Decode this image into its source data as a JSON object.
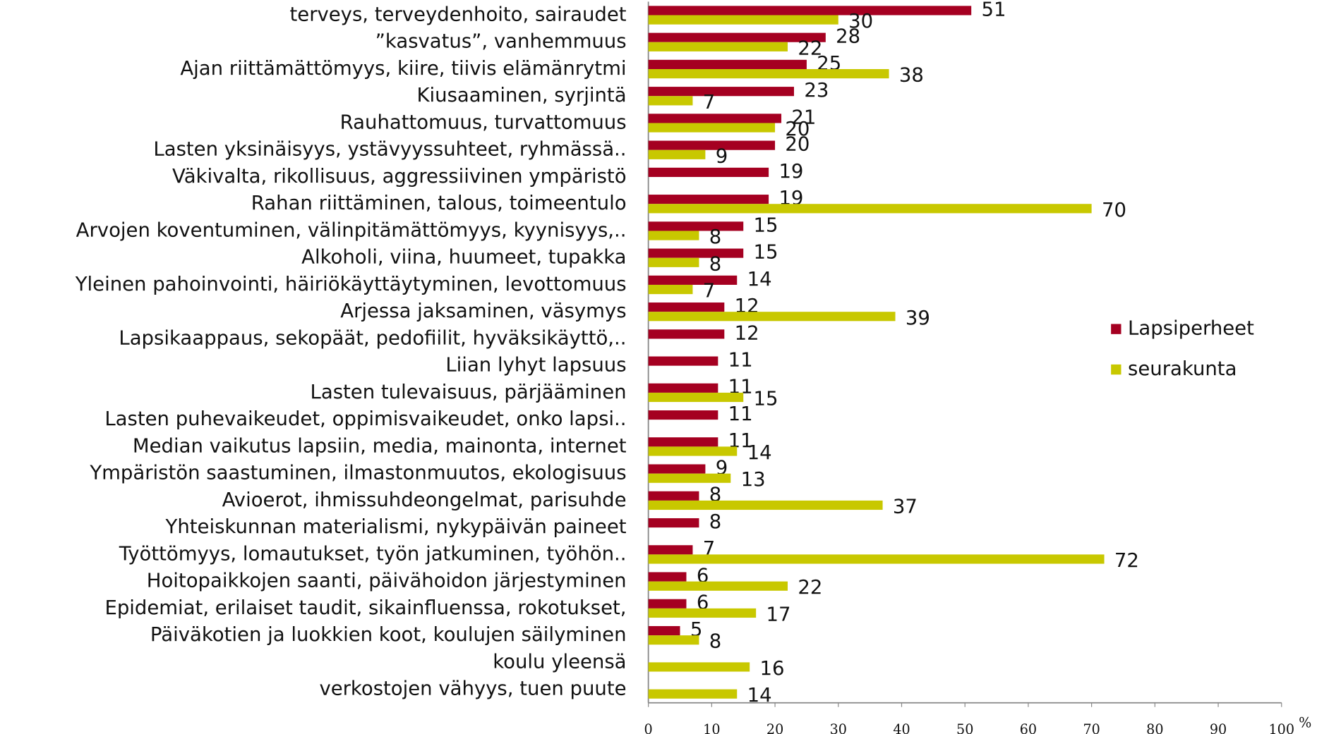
{
  "chart_data": {
    "type": "barh",
    "categories": [
      "terveys, terveydenhoito, sairaudet",
      "”kasvatus”, vanhemmuus",
      "Ajan riittämättömyys, kiire, tiivis elämänrytmi",
      "Kiusaaminen, syrjintä",
      "Rauhattomuus, turvattomuus",
      "Lasten yksinäisyys, ystävyyssuhteet, ryhmässä..",
      "Väkivalta, rikollisuus, aggressiivinen ympäristö",
      "Rahan riittäminen, talous, toimeentulo",
      "Arvojen koventuminen,  välinpitämättömyys, kyynisyys,..",
      "Alkoholi, viina, huumeet, tupakka",
      "Yleinen pahoinvointi, häiriökäyttäytyminen, levottomuus",
      "Arjessa jaksaminen, väsymys",
      "Lapsikaappaus, sekopäät, pedofiilit, hyväksikäyttö,..",
      "Liian lyhyt lapsuus",
      "Lasten tulevaisuus, pärjääminen",
      "Lasten puhevaikeudet, oppimisvaikeudet, onko lapsi..",
      "Median vaikutus lapsiin, media, mainonta, internet",
      "Ympäristön saastuminen, ilmastonmuutos, ekologisuus",
      "Avioerot, ihmissuhdeongelmat, parisuhde",
      "Yhteiskunnan materialismi, nykypäivän paineet",
      "Työttömyys, lomautukset, työn jatkuminen, työhön..",
      "Hoitopaikkojen saanti, päivähoidon järjestyminen",
      "Epidemiat, erilaiset taudit, sikainfluenssa, rokotukset,",
      "Päiväkotien ja luokkien koot, koulujen säilyminen",
      "koulu yleensä",
      "verkostojen vähyys, tuen puute"
    ],
    "series": [
      {
        "name": "Lapsiperheet",
        "color": "#a50021",
        "values": [
          51,
          28,
          25,
          23,
          21,
          20,
          19,
          19,
          15,
          15,
          14,
          12,
          12,
          11,
          11,
          11,
          11,
          9,
          8,
          8,
          7,
          6,
          6,
          5,
          null,
          null
        ]
      },
      {
        "name": "seurakunta",
        "color": "#c8c800",
        "values": [
          30,
          22,
          38,
          7,
          20,
          9,
          null,
          70,
          8,
          8,
          7,
          39,
          null,
          null,
          15,
          null,
          14,
          13,
          37,
          null,
          72,
          22,
          17,
          8,
          16,
          14
        ]
      }
    ],
    "x_label": "%",
    "xlim": [
      0,
      100
    ],
    "xticks": [
      0,
      10,
      20,
      30,
      40,
      50,
      60,
      70,
      80,
      90,
      100
    ],
    "legend": "right"
  }
}
